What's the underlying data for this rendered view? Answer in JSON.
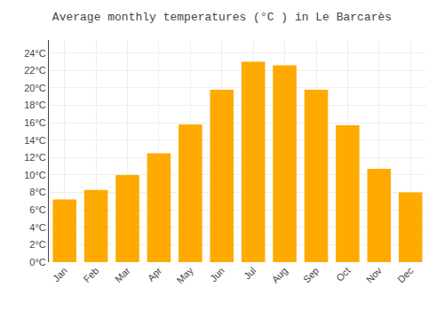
{
  "chart_data": {
    "type": "bar",
    "title": "Average monthly temperatures (°C ) in Le Barcarès",
    "categories": [
      "Jan",
      "Feb",
      "Mar",
      "Apr",
      "May",
      "Jun",
      "Jul",
      "Aug",
      "Sep",
      "Oct",
      "Nov",
      "Dec"
    ],
    "values": [
      7.2,
      8.3,
      10.0,
      12.5,
      15.8,
      19.8,
      23.0,
      22.6,
      19.8,
      15.7,
      10.7,
      8.0
    ],
    "color": "#FFAA00",
    "ylim": [
      0,
      25.5
    ],
    "yticks": [
      {
        "value": 0,
        "label": "0°C"
      },
      {
        "value": 2,
        "label": "2°C"
      },
      {
        "value": 4,
        "label": "4°C"
      },
      {
        "value": 6,
        "label": "6°C"
      },
      {
        "value": 8,
        "label": "8°C"
      },
      {
        "value": 10,
        "label": "10°C"
      },
      {
        "value": 12,
        "label": "12°C"
      },
      {
        "value": 14,
        "label": "14°C"
      },
      {
        "value": 16,
        "label": "16°C"
      },
      {
        "value": 18,
        "label": "18°C"
      },
      {
        "value": 20,
        "label": "20°C"
      },
      {
        "value": 22,
        "label": "22°C"
      },
      {
        "value": 24,
        "label": "24°C"
      }
    ],
    "grid": true
  }
}
